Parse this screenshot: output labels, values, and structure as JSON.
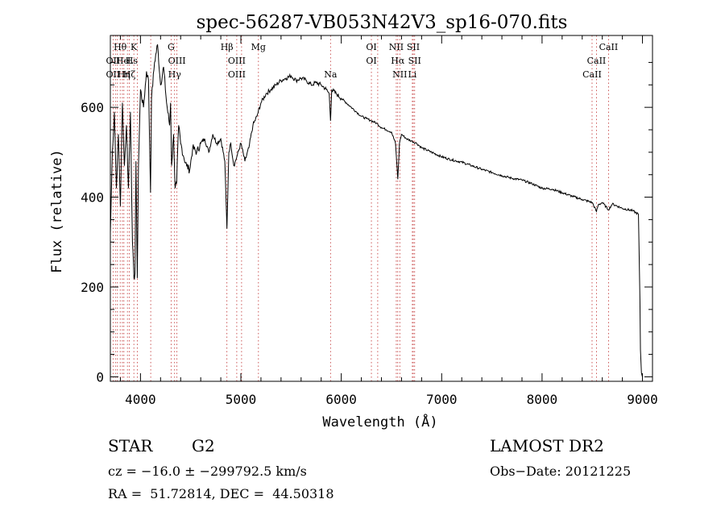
{
  "chart_data": {
    "type": "line",
    "title": "spec-56287-VB053N42V3_sp16-070.fits",
    "xlabel": "Wavelength (Å)",
    "ylabel": "Flux (relative)",
    "xlim": [
      3700,
      9100
    ],
    "ylim": [
      -10,
      760
    ],
    "x_ticks": [
      4000,
      5000,
      6000,
      7000,
      8000,
      9000
    ],
    "y_ticks": [
      0,
      200,
      400,
      600
    ],
    "grid": false,
    "series": [
      {
        "x": [
          3700,
          3720,
          3740,
          3760,
          3780,
          3800,
          3820,
          3840,
          3860,
          3880,
          3900,
          3920,
          3935,
          3945,
          3955,
          3968,
          3980,
          4000,
          4030,
          4060,
          4080,
          4100,
          4110,
          4140,
          4170,
          4200,
          4230,
          4260,
          4290,
          4300,
          4310,
          4330,
          4345,
          4360,
          4380,
          4400,
          4430,
          4460,
          4490,
          4520,
          4560,
          4600,
          4640,
          4680,
          4720,
          4760,
          4800,
          4840,
          4861,
          4880,
          4900,
          4930,
          4960,
          5000,
          5040,
          5080,
          5120,
          5160,
          5200,
          5250,
          5300,
          5350,
          5400,
          5450,
          5500,
          5550,
          5600,
          5650,
          5700,
          5750,
          5800,
          5850,
          5880,
          5893,
          5905,
          5950,
          6000,
          6050,
          6100,
          6150,
          6200,
          6250,
          6300,
          6350,
          6400,
          6450,
          6500,
          6540,
          6563,
          6580,
          6600,
          6650,
          6700,
          6750,
          6800,
          6900,
          7000,
          7100,
          7200,
          7300,
          7400,
          7500,
          7600,
          7700,
          7800,
          7900,
          8000,
          8100,
          8200,
          8300,
          8400,
          8500,
          8542,
          8560,
          8600,
          8662,
          8700,
          8800,
          8900,
          8960,
          8975,
          8980,
          8990,
          9000
        ],
        "y": [
          320,
          500,
          590,
          420,
          540,
          380,
          610,
          470,
          560,
          420,
          590,
          300,
          220,
          230,
          480,
          220,
          470,
          640,
          600,
          680,
          660,
          410,
          620,
          700,
          740,
          650,
          690,
          610,
          560,
          610,
          470,
          540,
          420,
          430,
          560,
          520,
          490,
          470,
          460,
          510,
          500,
          520,
          530,
          500,
          540,
          520,
          530,
          480,
          330,
          500,
          520,
          470,
          490,
          520,
          480,
          510,
          560,
          580,
          610,
          630,
          640,
          650,
          660,
          665,
          670,
          660,
          665,
          660,
          650,
          655,
          650,
          640,
          630,
          570,
          640,
          630,
          620,
          610,
          600,
          590,
          580,
          575,
          570,
          565,
          555,
          550,
          545,
          520,
          440,
          520,
          540,
          530,
          525,
          520,
          510,
          500,
          490,
          483,
          478,
          470,
          462,
          455,
          448,
          442,
          438,
          430,
          420,
          418,
          410,
          402,
          395,
          388,
          368,
          383,
          388,
          372,
          385,
          375,
          370,
          362,
          170,
          60,
          8,
          0
        ]
      }
    ],
    "line_labels": {
      "top": [
        {
          "label": "Hθ",
          "x": 3798
        },
        {
          "label": "K",
          "x": 3934
        },
        {
          "label": "G",
          "x": 4305
        },
        {
          "label": "Hβ",
          "x": 4861
        },
        {
          "label": "Mg",
          "x": 5175
        },
        {
          "label": "OI",
          "x": 6300
        },
        {
          "label": "NII",
          "x": 6548
        },
        {
          "label": "SII",
          "x": 6717
        },
        {
          "label": "CaII",
          "x": 8662
        }
      ],
      "middle": [
        {
          "label": "OII",
          "x": 3727
        },
        {
          "label": "He",
          "x": 3820
        },
        {
          "label": "H",
          "x": 3889
        },
        {
          "label": "Ls",
          "x": 3920
        },
        {
          "label": "OIII",
          "x": 4363
        },
        {
          "label": "OIII",
          "x": 4959
        },
        {
          "label": "OI",
          "x": 6300
        },
        {
          "label": "Hα",
          "x": 6563
        },
        {
          "label": "SII",
          "x": 6731
        },
        {
          "label": "CaII",
          "x": 8542
        }
      ],
      "bottom": [
        {
          "label": "OII",
          "x": 3727
        },
        {
          "label": "Hη",
          "x": 3835
        },
        {
          "label": "Hζ",
          "x": 3889
        },
        {
          "label": "Hγ",
          "x": 4340
        },
        {
          "label": "OIII",
          "x": 4959
        },
        {
          "label": "Na",
          "x": 5893
        },
        {
          "label": "NII",
          "x": 6583
        },
        {
          "label": "Li",
          "x": 6708
        },
        {
          "label": "CaII",
          "x": 8498
        }
      ],
      "dotted_lines": [
        3727,
        3750,
        3770,
        3798,
        3820,
        3835,
        3870,
        3889,
        3934,
        3968,
        4102,
        4305,
        4340,
        4363,
        4861,
        4959,
        5007,
        5175,
        5893,
        6300,
        6363,
        6548,
        6563,
        6583,
        6708,
        6717,
        6731,
        8498,
        8542,
        8662
      ]
    }
  },
  "info": {
    "object": "STAR",
    "subclass": "G2",
    "survey": "LAMOST DR2",
    "cz": "cz = −16.0 ± −299792.5 km/s",
    "obs_date": "Obs−Date: 20121225",
    "coords": "RA =  51.72814, DEC =  44.50318"
  }
}
